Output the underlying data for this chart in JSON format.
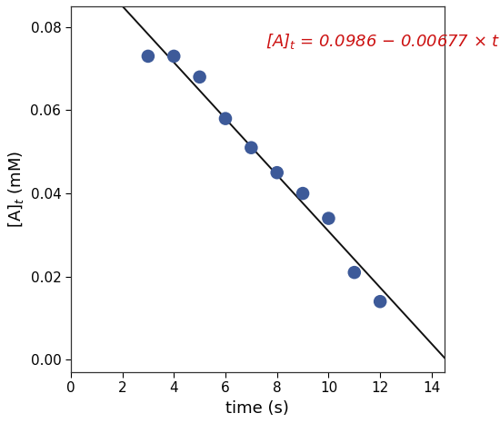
{
  "x_data": [
    3,
    4,
    5,
    6,
    7,
    8,
    9,
    10,
    11,
    12
  ],
  "y_data": [
    0.073,
    0.073,
    0.068,
    0.058,
    0.051,
    0.045,
    0.04,
    0.034,
    0.021,
    0.014
  ],
  "intercept": 0.0986,
  "slope": -0.00677,
  "x_line_start": 0.5,
  "x_line_end": 14.5,
  "dot_color": "#3d5a99",
  "line_color": "#111111",
  "annotation_color": "#cc1111",
  "xlabel": "time (s)",
  "ylabel": "[A]$_t$ (mM)",
  "annotation": "[A]$_t$ = 0.0986 − 0.00677 × $t$",
  "xlim": [
    0,
    14.5
  ],
  "ylim": [
    -0.003,
    0.085
  ],
  "xticks": [
    0,
    2,
    4,
    6,
    8,
    10,
    12,
    14
  ],
  "yticks": [
    0.0,
    0.02,
    0.04,
    0.06,
    0.08
  ],
  "marker_size": 110,
  "xlabel_fontsize": 13,
  "ylabel_fontsize": 13,
  "annot_fontsize": 13,
  "tick_fontsize": 11,
  "figsize": [
    5.5,
    4.66
  ],
  "dpi": 100
}
